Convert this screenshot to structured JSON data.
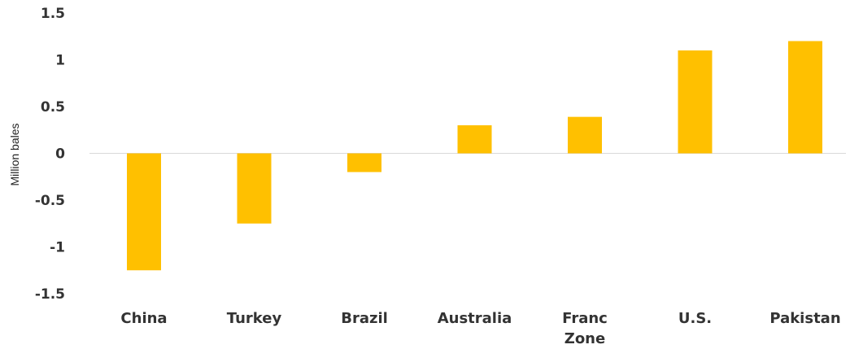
{
  "chart_data": {
    "type": "bar",
    "categories": [
      [
        "China"
      ],
      [
        "Turkey"
      ],
      [
        "Brazil"
      ],
      [
        "Australia"
      ],
      [
        "Franc",
        "Zone"
      ],
      [
        "U.S."
      ],
      [
        "Pakistan"
      ]
    ],
    "values": [
      -1.25,
      -0.75,
      -0.2,
      0.3,
      0.39,
      1.1,
      1.2
    ],
    "title": "",
    "xlabel": "",
    "ylabel": "Million bales",
    "ylim": [
      -1.5,
      1.5
    ],
    "yticks": [
      1.5,
      1,
      0.5,
      0,
      -0.5,
      -1,
      -1.5
    ],
    "ytick_labels": [
      "1.5",
      "1",
      "0.5",
      "0",
      "-0.5",
      "-1",
      "-1.5"
    ],
    "grid": false,
    "zero_line": true,
    "legend": "none",
    "bar_color": "#FFC000",
    "zero_line_color": "#d9d9d9"
  }
}
